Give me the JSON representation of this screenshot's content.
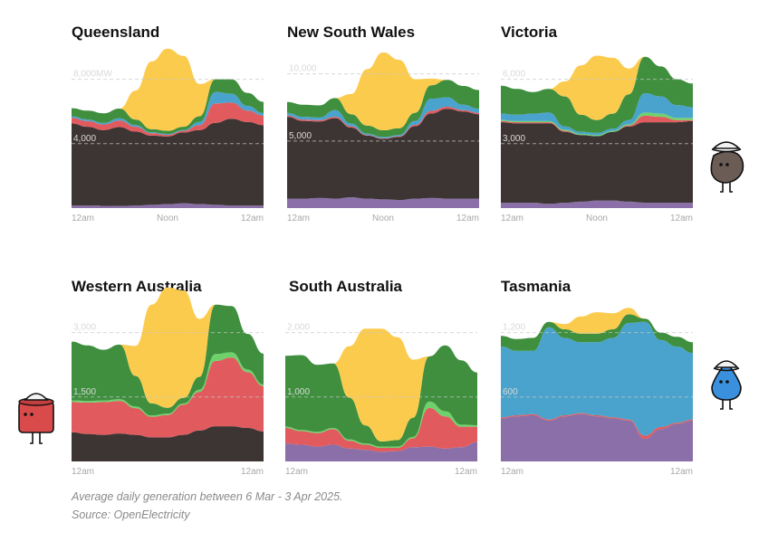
{
  "footer": {
    "note": "Average daily generation between 6 Mar - 3 Apr 2025.",
    "source": "Source: OpenElectricity"
  },
  "colors": {
    "coal": "#3d3533",
    "gas": "#e15b5e",
    "distillate": "#f4a6a0",
    "bioenergy": "#6fd16b",
    "hydro": "#4aa3cc",
    "wind": "#3f8f3f",
    "solar": "#fbcb4e",
    "battery_pumps": "#8a6fa8"
  },
  "mascots": [
    {
      "icon": "coal-lump-mascot-icon",
      "color": "#6b5c55"
    },
    {
      "icon": "gas-canister-mascot-icon",
      "color": "#d94b4b"
    },
    {
      "icon": "water-drop-mascot-icon",
      "color": "#3a90dc"
    }
  ],
  "chart_data": [
    {
      "type": "area",
      "title": "Queensland",
      "x": [
        "12am",
        "2am",
        "4am",
        "6am",
        "8am",
        "10am",
        "Noon",
        "2pm",
        "4pm",
        "6pm",
        "8pm",
        "10pm",
        "12am"
      ],
      "x_tick_labels": [
        "12am",
        "Noon",
        "12am"
      ],
      "y_ticks": [
        {
          "value": 4000,
          "label": "4,000"
        },
        {
          "value": 8000,
          "label": "8,000MW"
        }
      ],
      "ylim": [
        0,
        10000
      ],
      "series": [
        {
          "key": "battery_pumps",
          "color": "#8a6fa8",
          "values": [
            150,
            150,
            140,
            130,
            150,
            200,
            250,
            300,
            250,
            200,
            150,
            150,
            150
          ]
        },
        {
          "key": "coal",
          "color": "#3d3533",
          "values": [
            5100,
            4900,
            4700,
            4900,
            4600,
            4300,
            4200,
            4400,
            4600,
            5100,
            5400,
            5200,
            5000
          ]
        },
        {
          "key": "gas",
          "color": "#e15b5e",
          "values": [
            350,
            350,
            350,
            400,
            300,
            150,
            100,
            100,
            300,
            1200,
            1000,
            700,
            600
          ]
        },
        {
          "key": "hydro",
          "color": "#4aa3cc",
          "values": [
            100,
            100,
            100,
            150,
            100,
            50,
            50,
            50,
            200,
            700,
            550,
            300,
            150
          ]
        },
        {
          "key": "wind",
          "color": "#3f8f3f",
          "values": [
            500,
            550,
            600,
            600,
            350,
            200,
            200,
            200,
            350,
            800,
            900,
            800,
            700
          ]
        },
        {
          "key": "solar",
          "color": "#fbcb4e",
          "values": [
            0,
            0,
            0,
            0,
            1800,
            4200,
            5100,
            4400,
            2000,
            0,
            0,
            0,
            0
          ]
        }
      ]
    },
    {
      "type": "area",
      "title": "New South Wales",
      "x": [
        "12am",
        "2am",
        "4am",
        "6am",
        "8am",
        "10am",
        "Noon",
        "2pm",
        "4pm",
        "6pm",
        "8pm",
        "10pm",
        "12am"
      ],
      "x_tick_labels": [
        "12am",
        "Noon",
        "12am"
      ],
      "y_ticks": [
        {
          "value": 5000,
          "label": "5,000"
        },
        {
          "value": 10000,
          "label": "10,000"
        }
      ],
      "ylim": [
        0,
        12000
      ],
      "series": [
        {
          "key": "battery_pumps",
          "color": "#8a6fa8",
          "values": [
            700,
            700,
            750,
            700,
            800,
            700,
            650,
            600,
            700,
            750,
            700,
            700,
            700
          ]
        },
        {
          "key": "coal",
          "color": "#3d3533",
          "values": [
            6100,
            5800,
            5700,
            6000,
            5200,
            4700,
            4500,
            4700,
            5400,
            6300,
            6700,
            6500,
            6300
          ]
        },
        {
          "key": "gas",
          "color": "#e15b5e",
          "values": [
            100,
            100,
            100,
            100,
            100,
            50,
            50,
            50,
            100,
            200,
            150,
            100,
            100
          ]
        },
        {
          "key": "hydro",
          "color": "#4aa3cc",
          "values": [
            200,
            200,
            200,
            500,
            200,
            100,
            100,
            100,
            300,
            900,
            700,
            400,
            300
          ]
        },
        {
          "key": "wind",
          "color": "#3f8f3f",
          "values": [
            800,
            900,
            900,
            900,
            700,
            600,
            500,
            500,
            600,
            1000,
            1300,
            1400,
            1400
          ]
        },
        {
          "key": "solar",
          "color": "#fbcb4e",
          "values": [
            0,
            0,
            0,
            0,
            1500,
            4200,
            5800,
            5100,
            2500,
            500,
            0,
            0,
            0
          ]
        }
      ]
    },
    {
      "type": "area",
      "title": "Victoria",
      "x": [
        "12am",
        "2am",
        "4am",
        "6am",
        "8am",
        "10am",
        "Noon",
        "2pm",
        "4pm",
        "6pm",
        "8pm",
        "10pm",
        "12am"
      ],
      "x_tick_labels": [
        "12am",
        "Noon",
        "12am"
      ],
      "y_ticks": [
        {
          "value": 3000,
          "label": "3,000"
        },
        {
          "value": 6000,
          "label": "6,000"
        }
      ],
      "ylim": [
        0,
        7500
      ],
      "series": [
        {
          "key": "battery_pumps",
          "color": "#8a6fa8",
          "values": [
            250,
            250,
            250,
            200,
            250,
            300,
            350,
            350,
            300,
            250,
            250,
            250,
            250
          ]
        },
        {
          "key": "coal",
          "color": "#3d3533",
          "values": [
            3750,
            3700,
            3700,
            3750,
            3300,
            3100,
            3000,
            3200,
            3500,
            3750,
            3750,
            3750,
            3800
          ]
        },
        {
          "key": "gas",
          "color": "#e15b5e",
          "values": [
            50,
            50,
            50,
            50,
            50,
            0,
            0,
            0,
            50,
            300,
            250,
            100,
            50
          ]
        },
        {
          "key": "bioenergy",
          "color": "#6fd16b",
          "values": [
            50,
            50,
            50,
            50,
            50,
            50,
            50,
            50,
            50,
            150,
            150,
            100,
            100
          ]
        },
        {
          "key": "hydro",
          "color": "#4aa3cc",
          "values": [
            300,
            300,
            350,
            400,
            150,
            100,
            100,
            100,
            200,
            900,
            800,
            600,
            500
          ]
        },
        {
          "key": "wind",
          "color": "#3f8f3f",
          "values": [
            1300,
            1200,
            1000,
            1100,
            1400,
            800,
            600,
            700,
            1200,
            1700,
            1400,
            1200,
            1100
          ]
        },
        {
          "key": "solar",
          "color": "#fbcb4e",
          "values": [
            0,
            0,
            0,
            0,
            700,
            2300,
            3000,
            2600,
            1200,
            0,
            0,
            0,
            0
          ]
        }
      ]
    },
    {
      "type": "area",
      "title": "Western Australia",
      "x": [
        "12am",
        "2am",
        "4am",
        "6am",
        "8am",
        "10am",
        "Noon",
        "2pm",
        "4pm",
        "6pm",
        "8pm",
        "10pm",
        "12am"
      ],
      "x_tick_labels": [
        "12am",
        "12am"
      ],
      "y_ticks": [
        {
          "value": 1500,
          "label": "1,500"
        },
        {
          "value": 3000,
          "label": "3,000"
        }
      ],
      "ylim": [
        0,
        3750
      ],
      "series": [
        {
          "key": "coal",
          "color": "#3d3533",
          "values": [
            680,
            640,
            620,
            650,
            620,
            560,
            560,
            620,
            720,
            820,
            820,
            780,
            700
          ]
        },
        {
          "key": "gas",
          "color": "#e15b5e",
          "values": [
            700,
            730,
            760,
            760,
            620,
            480,
            520,
            700,
            900,
            1520,
            1600,
            1300,
            1050
          ]
        },
        {
          "key": "bioenergy",
          "color": "#6fd16b",
          "values": [
            40,
            40,
            40,
            40,
            40,
            30,
            30,
            30,
            50,
            160,
            120,
            60,
            40
          ]
        },
        {
          "key": "wind",
          "color": "#3f8f3f",
          "values": [
            1370,
            1290,
            1180,
            1270,
            710,
            280,
            140,
            130,
            300,
            1150,
            1080,
            830,
            720
          ]
        },
        {
          "key": "solar",
          "color": "#fbcb4e",
          "values": [
            0,
            0,
            0,
            0,
            700,
            2300,
            2800,
            2500,
            1350,
            0,
            0,
            0,
            0
          ]
        }
      ]
    },
    {
      "type": "area",
      "title": "South Australia",
      "x": [
        "12am",
        "2am",
        "4am",
        "6am",
        "8am",
        "10am",
        "Noon",
        "2pm",
        "4pm",
        "6pm",
        "8pm",
        "10pm",
        "12am"
      ],
      "x_tick_labels": [
        "12am",
        "12am"
      ],
      "y_ticks": [
        {
          "value": 1000,
          "label": "1,000"
        },
        {
          "value": 2000,
          "label": "2,000"
        }
      ],
      "ylim": [
        0,
        2500
      ],
      "series": [
        {
          "key": "battery_pumps",
          "color": "#8a6fa8",
          "values": [
            280,
            260,
            230,
            260,
            200,
            180,
            150,
            160,
            220,
            230,
            200,
            220,
            300
          ]
        },
        {
          "key": "gas",
          "color": "#e15b5e",
          "values": [
            240,
            210,
            210,
            240,
            120,
            80,
            60,
            50,
            140,
            600,
            500,
            320,
            240
          ]
        },
        {
          "key": "bioenergy",
          "color": "#6fd16b",
          "values": [
            20,
            20,
            20,
            20,
            20,
            20,
            20,
            20,
            20,
            100,
            80,
            30,
            20
          ]
        },
        {
          "key": "wind",
          "color": "#3f8f3f",
          "values": [
            1100,
            1160,
            1040,
            1000,
            650,
            280,
            80,
            100,
            300,
            700,
            1020,
            1000,
            820
          ]
        },
        {
          "key": "solar",
          "color": "#fbcb4e",
          "values": [
            0,
            0,
            0,
            0,
            800,
            1500,
            1750,
            1600,
            900,
            0,
            0,
            0,
            0
          ]
        }
      ]
    },
    {
      "type": "area",
      "title": "Tasmania",
      "x": [
        "12am",
        "2am",
        "4am",
        "6am",
        "8am",
        "10am",
        "Noon",
        "2pm",
        "4pm",
        "6pm",
        "8pm",
        "10pm",
        "12am"
      ],
      "x_tick_labels": [
        "12am",
        "12am"
      ],
      "y_ticks": [
        {
          "value": 600,
          "label": "600"
        },
        {
          "value": 1200,
          "label": "1,200"
        }
      ],
      "ylim": [
        0,
        1500
      ],
      "series": [
        {
          "key": "battery_pumps",
          "color": "#8a6fa8",
          "values": [
            400,
            420,
            430,
            380,
            420,
            440,
            420,
            400,
            380,
            210,
            300,
            350,
            380
          ]
        },
        {
          "key": "gas",
          "color": "#e15b5e",
          "values": [
            10,
            10,
            10,
            10,
            10,
            10,
            10,
            10,
            10,
            30,
            20,
            10,
            10
          ]
        },
        {
          "key": "hydro",
          "color": "#4aa3cc",
          "values": [
            660,
            600,
            590,
            860,
            720,
            660,
            680,
            740,
            900,
            1060,
            810,
            710,
            620
          ]
        },
        {
          "key": "wind",
          "color": "#3f8f3f",
          "values": [
            100,
            110,
            120,
            50,
            80,
            80,
            80,
            80,
            80,
            30,
            70,
            90,
            100
          ]
        },
        {
          "key": "solar",
          "color": "#fbcb4e",
          "values": [
            0,
            0,
            0,
            0,
            50,
            160,
            200,
            150,
            60,
            0,
            0,
            0,
            0
          ]
        }
      ]
    }
  ]
}
